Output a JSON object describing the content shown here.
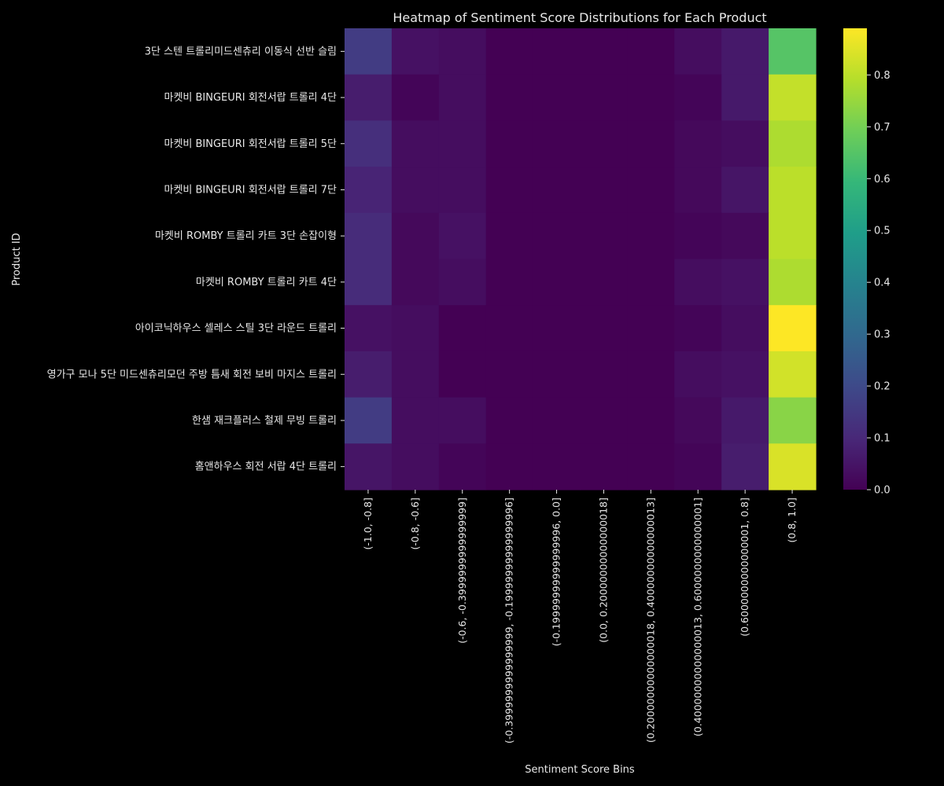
{
  "chart_data": {
    "type": "heatmap",
    "title": "Heatmap of Sentiment Score Distributions for Each Product",
    "xlabel": "Sentiment Score Bins",
    "ylabel": "Product ID",
    "x_categories": [
      "(-1.0, -0.8]",
      "(-0.8, -0.6]",
      "(-0.6, -0.3999999999999999]",
      "(-0.3999999999999999, -0.19999999999999996]",
      "(-0.19999999999999996, 0.0]",
      "(0.0, 0.20000000000000018]",
      "(0.20000000000000018, 0.40000000000000013]",
      "(0.40000000000000013, 0.6000000000000001]",
      "(0.6000000000000001, 0.8]",
      "(0.8, 1.0]"
    ],
    "y_categories": [
      "3단 스텐 트롤리미드센츄리 이동식 선반 슬림",
      "마켓비 BINGEURI 회전서랍 트롤리 4단",
      "마켓비 BINGEURI 회전서랍 트롤리 5단",
      "마켓비 BINGEURI 회전서랍 트롤리 7단",
      "마켓비 ROMBY 트롤리 카트 3단 손잡이형",
      "마켓비 ROMBY 트롤리 카트 4단",
      "아이코닉하우스 셀레스 스틸 3단 라운드 트롤리",
      "영가구 모나 5단 미드센츄리모던 주방 틈새 회전 보비 마지스 트롤리",
      "한샘 재크플러스 철제 무빙 트롤리",
      "홈앤하우스 회전 서랍 4단 트롤리"
    ],
    "values": [
      [
        0.16,
        0.04,
        0.03,
        0.0,
        0.0,
        0.0,
        0.0,
        0.03,
        0.06,
        0.65
      ],
      [
        0.07,
        0.01,
        0.03,
        0.0,
        0.0,
        0.0,
        0.0,
        0.01,
        0.06,
        0.81
      ],
      [
        0.12,
        0.03,
        0.03,
        0.0,
        0.0,
        0.0,
        0.0,
        0.02,
        0.03,
        0.78
      ],
      [
        0.09,
        0.03,
        0.03,
        0.0,
        0.0,
        0.0,
        0.0,
        0.02,
        0.05,
        0.8
      ],
      [
        0.11,
        0.02,
        0.04,
        0.0,
        0.0,
        0.0,
        0.0,
        0.01,
        0.02,
        0.8
      ],
      [
        0.11,
        0.02,
        0.03,
        0.0,
        0.0,
        0.0,
        0.0,
        0.03,
        0.04,
        0.78
      ],
      [
        0.04,
        0.03,
        0.0,
        0.0,
        0.0,
        0.0,
        0.0,
        0.01,
        0.03,
        0.89
      ],
      [
        0.07,
        0.03,
        0.0,
        0.0,
        0.0,
        0.0,
        0.0,
        0.03,
        0.04,
        0.83
      ],
      [
        0.16,
        0.03,
        0.03,
        0.0,
        0.0,
        0.0,
        0.0,
        0.02,
        0.06,
        0.73
      ],
      [
        0.05,
        0.03,
        0.01,
        0.0,
        0.0,
        0.0,
        0.0,
        0.01,
        0.07,
        0.84
      ]
    ],
    "colorbar": {
      "colormap": "viridis",
      "vmin": 0.0,
      "vmax": 0.89,
      "ticks": [
        "0.0",
        "0.1",
        "0.2",
        "0.3",
        "0.4",
        "0.5",
        "0.6",
        "0.7",
        "0.8"
      ]
    },
    "colors": {
      "background": "#000000",
      "text": "#e8e8e8"
    }
  }
}
